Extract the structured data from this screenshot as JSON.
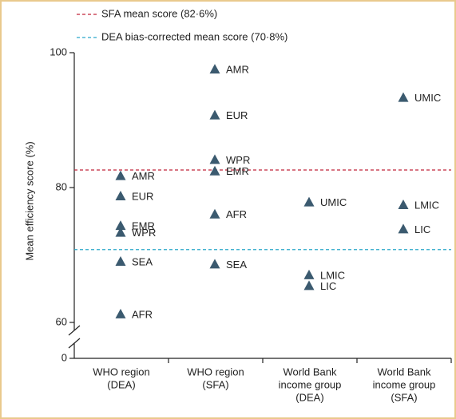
{
  "chart_data": {
    "type": "scatter",
    "y_label": "Mean efficiency score (%)",
    "categories": [
      [
        "WHO region",
        "(DEA)"
      ],
      [
        "WHO region",
        "(SFA)"
      ],
      [
        "World Bank",
        "income group",
        "(DEA)"
      ],
      [
        "World Bank",
        "income group",
        "(SFA)"
      ]
    ],
    "marker_color": "#3b5a6f",
    "series": [
      {
        "labels": [
          "AMR",
          "EUR",
          "EMR",
          "WPR",
          "SEA",
          "AFR"
        ],
        "values": [
          81.7,
          78.7,
          74.3,
          73.3,
          69.0,
          61.2
        ]
      },
      {
        "labels": [
          "AMR",
          "EUR",
          "WPR",
          "EMR",
          "AFR",
          "SEA"
        ],
        "values": [
          97.5,
          90.7,
          84.1,
          82.4,
          76.0,
          68.6
        ]
      },
      {
        "labels": [
          "UMIC",
          "LMIC",
          "LIC"
        ],
        "values": [
          77.8,
          67.0,
          65.4
        ]
      },
      {
        "labels": [
          "UMIC",
          "LMIC",
          "LIC"
        ],
        "values": [
          93.3,
          77.4,
          73.8
        ]
      }
    ],
    "reference_lines": [
      {
        "label": "SFA mean score (82·6%)",
        "value": 82.6,
        "color": "#c0253a"
      },
      {
        "label": "DEA bias-corrected mean score (70·8%)",
        "value": 70.8,
        "color": "#2aa7c9"
      }
    ],
    "ylim": [
      0,
      100
    ],
    "yticks": [
      0,
      60,
      80,
      100
    ],
    "axis_break": true
  }
}
